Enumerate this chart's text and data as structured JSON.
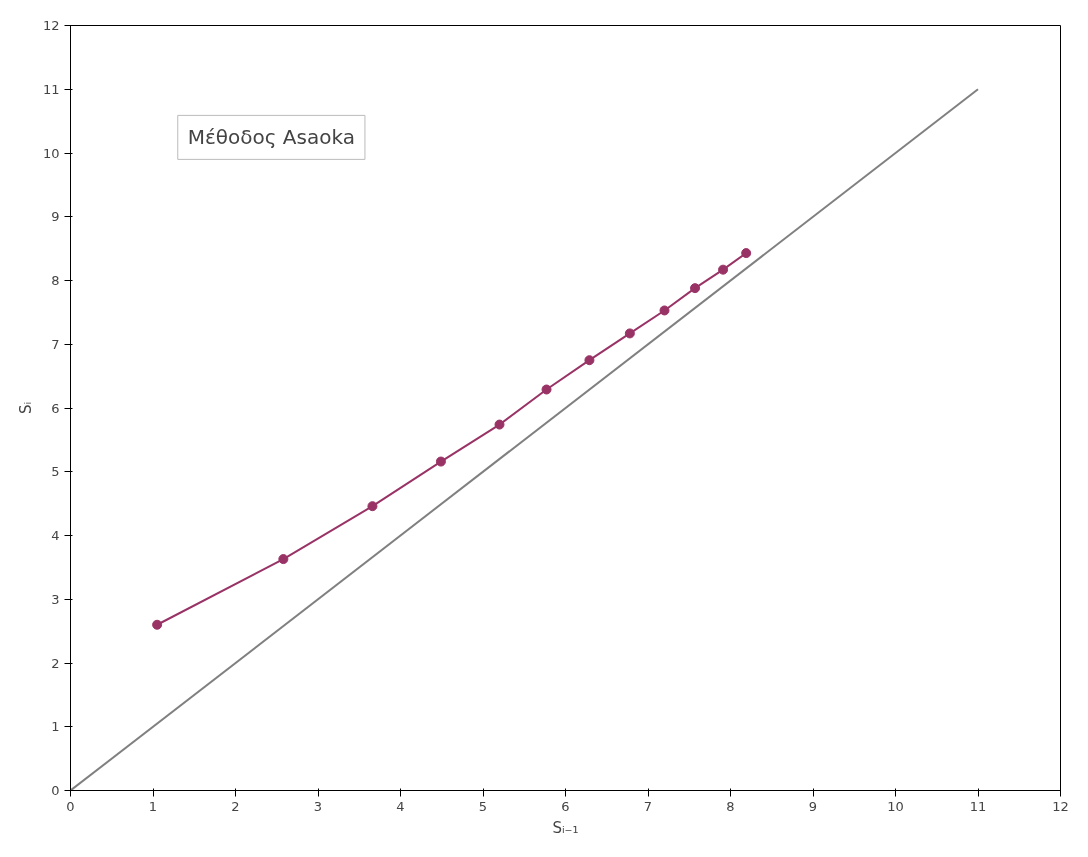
{
  "chart_data": {
    "type": "line",
    "xlabel": "Sᵢ₋₁",
    "ylabel": "Sᵢ",
    "xlim": [
      0,
      12
    ],
    "ylim": [
      0,
      12
    ],
    "xticks": [
      0,
      1,
      2,
      3,
      4,
      5,
      6,
      7,
      8,
      9,
      10,
      11,
      12
    ],
    "yticks": [
      0,
      1,
      2,
      3,
      4,
      5,
      6,
      7,
      8,
      9,
      10,
      11,
      12
    ],
    "grid": false,
    "annotations": [
      "Μέθοδος Asaoka"
    ],
    "series": [
      {
        "color": "#993366",
        "marker": "circle",
        "x": [
          1.05,
          2.58,
          3.66,
          4.49,
          5.2,
          5.77,
          6.29,
          6.78,
          7.2,
          7.57,
          7.91,
          8.19
        ],
        "values": [
          2.6,
          3.63,
          4.46,
          5.16,
          5.74,
          6.29,
          6.75,
          7.17,
          7.53,
          7.88,
          8.17,
          8.43
        ]
      },
      {
        "color": "#808080",
        "marker": "none",
        "x": [
          0,
          11
        ],
        "values": [
          0,
          11
        ]
      }
    ]
  }
}
